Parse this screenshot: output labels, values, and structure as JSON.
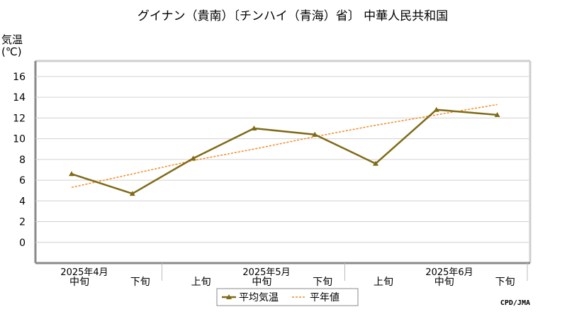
{
  "chart_data": {
    "type": "line",
    "title": "グイナン（貴南）〔チンハイ（青海）省〕 中華人民共和国",
    "ylabel_line1": "気温",
    "ylabel_line2": "(℃)",
    "ylim": [
      -2,
      17.5
    ],
    "yticks": [
      "16",
      "14",
      "12",
      "10",
      "8",
      "6",
      "4",
      "2",
      "0"
    ],
    "ytick_values": [
      16,
      14,
      12,
      10,
      8,
      6,
      4,
      2,
      0
    ],
    "categories": [
      "中旬",
      "下旬",
      "上旬",
      "中旬",
      "下旬",
      "上旬",
      "中旬",
      "下旬"
    ],
    "months": [
      "2025年4月",
      "2025年5月",
      "2025年6月"
    ],
    "grid": true,
    "legend_position": "bottom",
    "series": [
      {
        "name": "平均気温",
        "color": "#7f6a16",
        "style": "solid-line-triangle-markers",
        "values": [
          6.6,
          4.7,
          8.1,
          11.0,
          10.4,
          7.6,
          12.8,
          12.3
        ]
      },
      {
        "name": "平年値",
        "color": "#f08a24",
        "style": "dashed",
        "values": [
          5.3,
          6.6,
          7.9,
          9.0,
          10.2,
          11.3,
          12.3,
          13.3
        ]
      }
    ]
  },
  "credit": "CPD/JMA"
}
